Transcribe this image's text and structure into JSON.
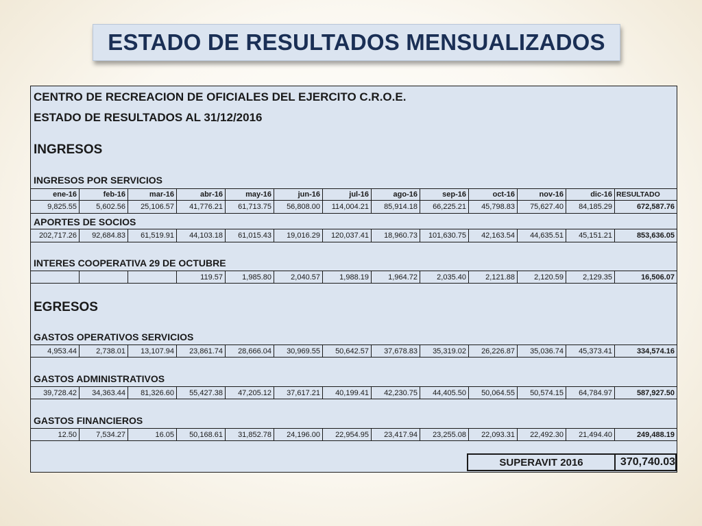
{
  "title": "ESTADO DE RESULTADOS MENSUALIZADOS",
  "company": "CENTRO DE RECREACION DE OFICIALES DEL EJERCITO C.R.O.E.",
  "statement": "ESTADO DE RESULTADOS AL 31/12/2016",
  "ingresos_label": "INGRESOS",
  "egresos_label": "EGRESOS",
  "months": [
    "ene-16",
    "feb-16",
    "mar-16",
    "abr-16",
    "may-16",
    "jun-16",
    "jul-16",
    "ago-16",
    "sep-16",
    "oct-16",
    "nov-16",
    "dic-16"
  ],
  "result_label": "RESULTADO",
  "sections": [
    {
      "label": "INGRESOS POR SERVICIOS",
      "values": [
        "9,825.55",
        "5,602.56",
        "25,106.57",
        "41,776.21",
        "61,713.75",
        "56,808.00",
        "114,004.21",
        "85,914.18",
        "66,225.21",
        "45,798.83",
        "75,627.40",
        "84,185.29"
      ],
      "total": "672,587.76"
    },
    {
      "label": "APORTES DE SOCIOS",
      "values": [
        "202,717.26",
        "92,684.83",
        "61,519.91",
        "44,103.18",
        "61,015.43",
        "19,016.29",
        "120,037.41",
        "18,960.73",
        "101,630.75",
        "42,163.54",
        "44,635.51",
        "45,151.21"
      ],
      "total": "853,636.05"
    },
    {
      "label": "INTERES COOPERATIVA 29 DE OCTUBRE",
      "values": [
        "",
        "",
        "",
        "119.57",
        "1,985.80",
        "2,040.57",
        "1,988.19",
        "1,964.72",
        "2,035.40",
        "2,121.88",
        "2,120.59",
        "2,129.35"
      ],
      "total": "16,506.07"
    },
    {
      "label": "GASTOS OPERATIVOS SERVICIOS",
      "values": [
        "4,953.44",
        "2,738.01",
        "13,107.94",
        "23,861.74",
        "28,666.04",
        "30,969.55",
        "50,642.57",
        "37,678.83",
        "35,319.02",
        "26,226.87",
        "35,036.74",
        "45,373.41"
      ],
      "total": "334,574.16"
    },
    {
      "label": "GASTOS ADMINISTRATIVOS",
      "values": [
        "39,728.42",
        "34,363.44",
        "81,326.60",
        "55,427.38",
        "47,205.12",
        "37,617.21",
        "40,199.41",
        "42,230.75",
        "44,405.50",
        "50,064.55",
        "50,574.15",
        "64,784.97"
      ],
      "total": "587,927.50"
    },
    {
      "label": "GASTOS FINANCIEROS",
      "values": [
        "12.50",
        "7,534.27",
        "16.05",
        "50,168.61",
        "31,852.78",
        "24,196.00",
        "22,954.95",
        "23,417.94",
        "23,255.08",
        "22,093.31",
        "22,492.30",
        "21,494.40"
      ],
      "total": "249,488.19"
    }
  ],
  "superavit": {
    "label": "SUPERAVIT 2016",
    "value": "370,740.03"
  }
}
